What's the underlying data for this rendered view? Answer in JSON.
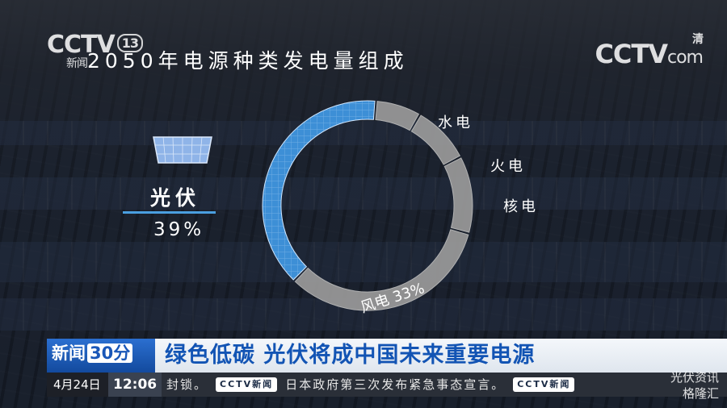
{
  "broadcast": {
    "channel_logo_left": "CCTV",
    "channel_number": "13",
    "channel_sub": "新闻",
    "channel_logo_right": "CCTV",
    "channel_logo_right_suffix": "com",
    "channel_logo_right_mark": "清"
  },
  "chart_data": {
    "type": "pie",
    "style": "donut",
    "title": "2050年电源种类发电量组成",
    "slices": [
      {
        "label": "光伏",
        "value": 39,
        "display": "39%",
        "color": "#3d8fd6",
        "highlighted": true
      },
      {
        "label": "风电",
        "value": 33,
        "display": "33%",
        "color": "#9a9a9a",
        "highlighted": false
      },
      {
        "label": "核电",
        "value": 12,
        "display": "",
        "color": "#9a9a9a",
        "highlighted": false
      },
      {
        "label": "火电",
        "value": 9,
        "display": "",
        "color": "#9a9a9a",
        "highlighted": false
      },
      {
        "label": "水电",
        "value": 7,
        "display": "",
        "color": "#9a9a9a",
        "highlighted": false
      }
    ]
  },
  "callout": {
    "pv_label": "光伏",
    "pv_value": "39%",
    "wind_label": "风电 33%"
  },
  "ticker": {
    "program_logo": "新闻",
    "program_number": "30分",
    "headline": "绿色低碳 光伏将成中国未来重要电源"
  },
  "bottom_bar": {
    "date": "4月24日",
    "time": "12:06",
    "scroll_prefix": "封锁。",
    "scroll_tag": "CCTV新闻",
    "scroll_text": "日本政府第三次发布紧急事态宣言。",
    "scroll_tag_2": "CCTV新闻"
  },
  "watermark": {
    "line1": "光伏资讯",
    "line2": "格隆汇"
  }
}
